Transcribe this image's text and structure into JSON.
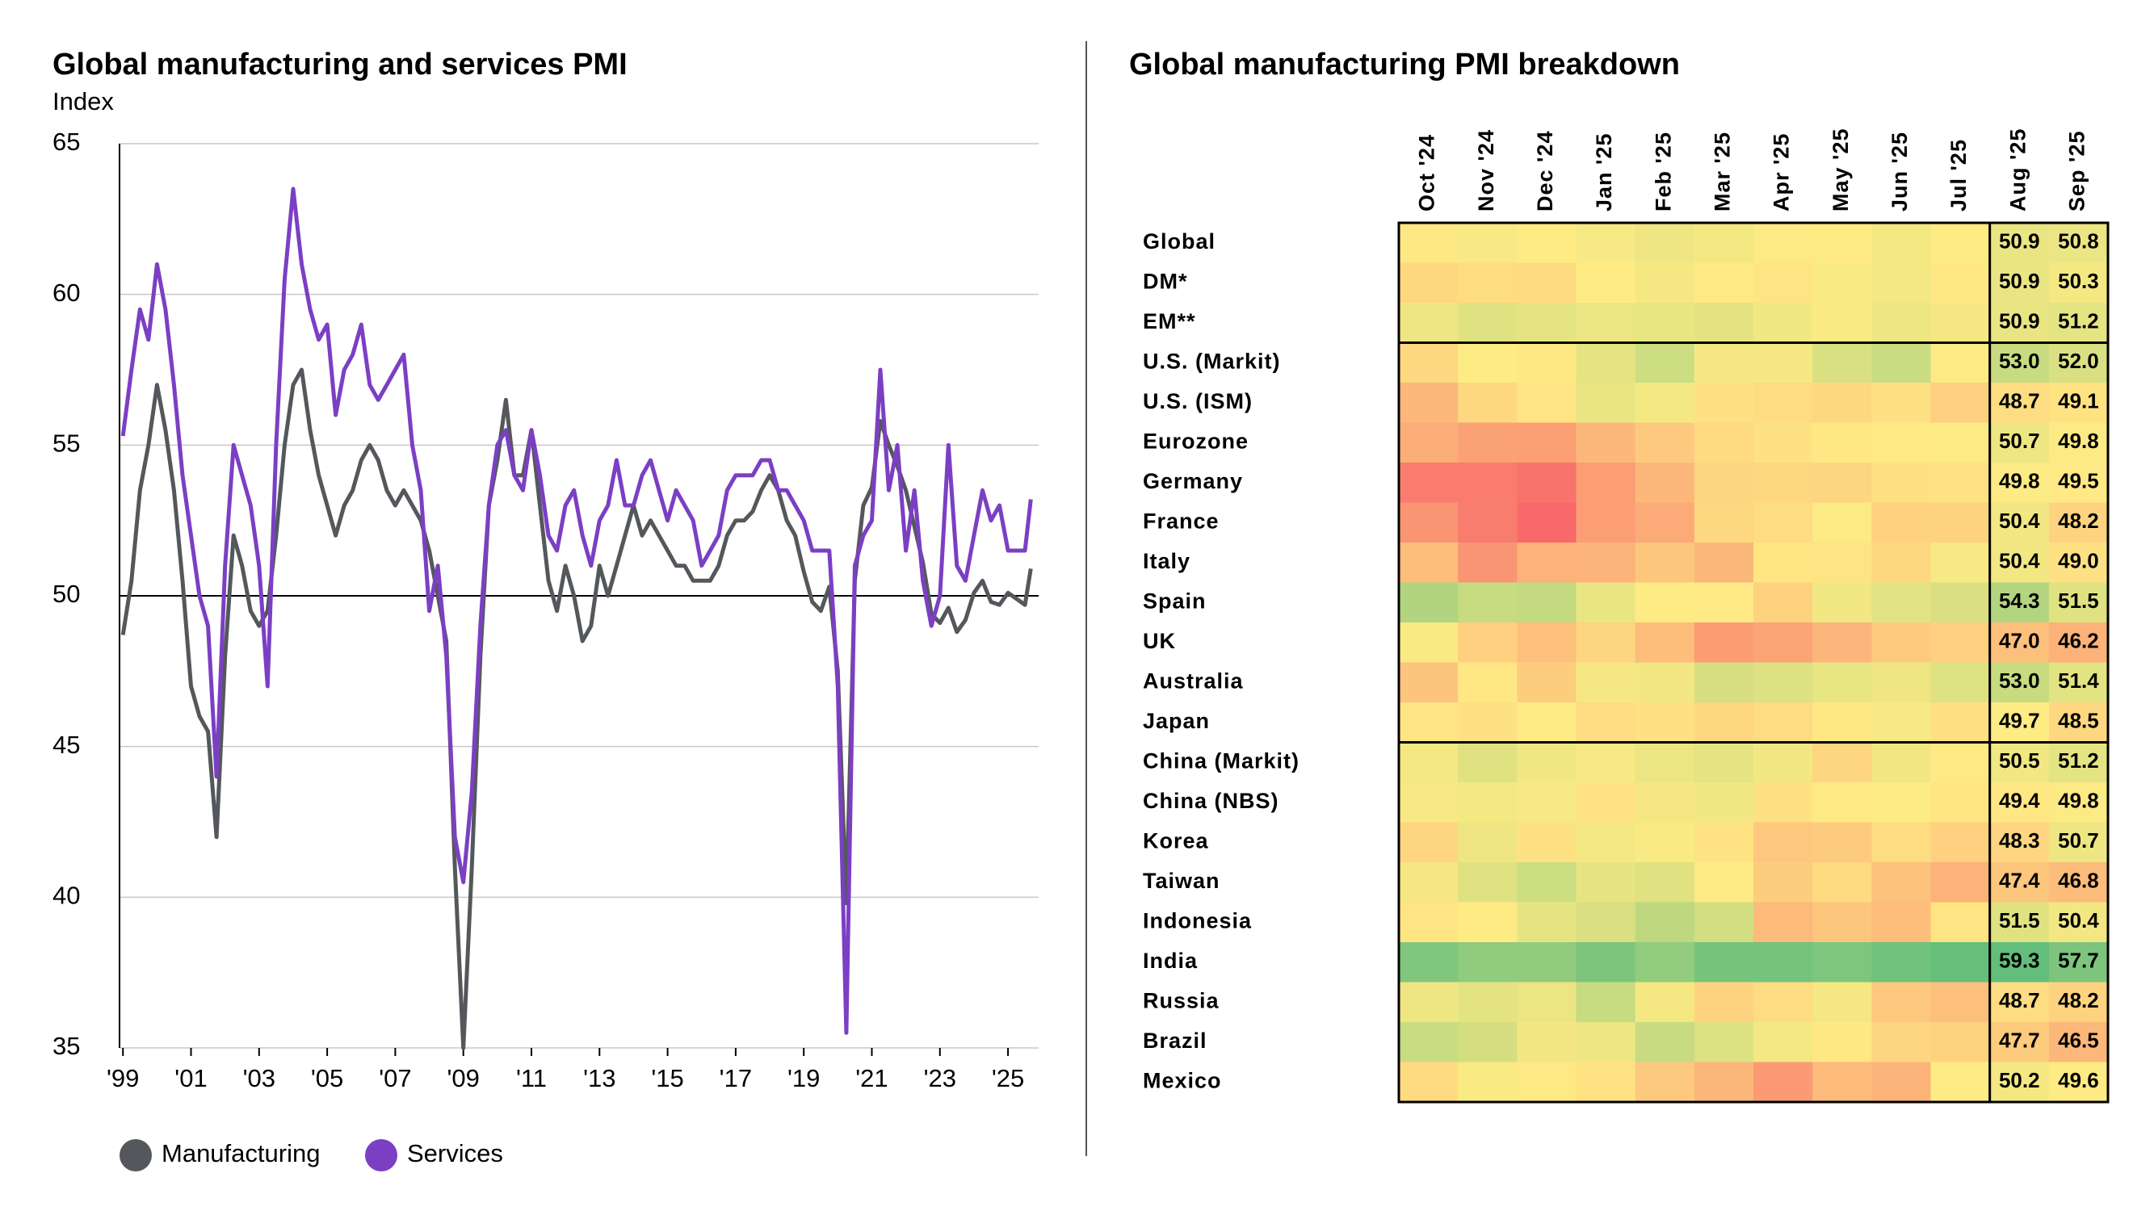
{
  "chart_data": [
    {
      "type": "line",
      "title": "Global manufacturing and services PMI",
      "y_label": "Index",
      "x": [
        1999,
        1999.25,
        1999.5,
        1999.75,
        2000,
        2000.25,
        2000.5,
        2000.75,
        2001,
        2001.25,
        2001.5,
        2001.75,
        2002,
        2002.25,
        2002.5,
        2002.75,
        2003,
        2003.25,
        2003.5,
        2003.75,
        2004,
        2004.25,
        2004.5,
        2004.75,
        2005,
        2005.25,
        2005.5,
        2005.75,
        2006,
        2006.25,
        2006.5,
        2006.75,
        2007,
        2007.25,
        2007.5,
        2007.75,
        2008,
        2008.25,
        2008.5,
        2008.75,
        2009,
        2009.25,
        2009.5,
        2009.75,
        2010,
        2010.25,
        2010.5,
        2010.75,
        2011,
        2011.25,
        2011.5,
        2011.75,
        2012,
        2012.25,
        2012.5,
        2012.75,
        2013,
        2013.25,
        2013.5,
        2013.75,
        2014,
        2014.25,
        2014.5,
        2014.75,
        2015,
        2015.25,
        2015.5,
        2015.75,
        2016,
        2016.25,
        2016.5,
        2016.75,
        2017,
        2017.25,
        2017.5,
        2017.75,
        2018,
        2018.25,
        2018.5,
        2018.75,
        2019,
        2019.25,
        2019.5,
        2019.75,
        2020,
        2020.25,
        2020.5,
        2020.75,
        2021,
        2021.25,
        2021.5,
        2021.75,
        2022,
        2022.25,
        2022.5,
        2022.75,
        2023,
        2023.25,
        2023.5,
        2023.75,
        2024,
        2024.25,
        2024.5,
        2024.75,
        2025,
        2025.25,
        2025.5,
        2025.67
      ],
      "series": [
        {
          "name": "Manufacturing",
          "color": "#54585c",
          "values": [
            48.7,
            50.5,
            53.5,
            55,
            57,
            55.5,
            53.5,
            50.5,
            47,
            46,
            45.5,
            42,
            48,
            52,
            51,
            49.5,
            49,
            49.5,
            52,
            55,
            57,
            57.5,
            55.5,
            54,
            53,
            52,
            53,
            53.5,
            54.5,
            55,
            54.5,
            53.5,
            53,
            53.5,
            53,
            52.5,
            51.5,
            50,
            48.5,
            41,
            35,
            41,
            48,
            53,
            54.5,
            56.5,
            54,
            54,
            55.5,
            53,
            50.5,
            49.5,
            51,
            50,
            48.5,
            49,
            51,
            50,
            51,
            52,
            53,
            52,
            52.5,
            52,
            51.5,
            51,
            51,
            50.5,
            50.5,
            50.5,
            51,
            52,
            52.5,
            52.5,
            52.8,
            53.5,
            54,
            53.5,
            52.5,
            52,
            50.8,
            49.8,
            49.5,
            50.3,
            47.5,
            39.8,
            50.5,
            53,
            53.6,
            55.8,
            55,
            54.3,
            53.5,
            52.3,
            51.1,
            49.4,
            49.1,
            49.6,
            48.8,
            49.2,
            50.1,
            50.5,
            49.8,
            49.7,
            50.1,
            49.9,
            49.7,
            50.9
          ]
        },
        {
          "name": "Services",
          "color": "#7b3fc4",
          "values": [
            55.3,
            57.5,
            59.5,
            58.5,
            61,
            59.5,
            57,
            54,
            52,
            50,
            49,
            44,
            51,
            55,
            54,
            53,
            51,
            47,
            55,
            60.5,
            63.5,
            61,
            59.5,
            58.5,
            59,
            56,
            57.5,
            58,
            59,
            57,
            56.5,
            57,
            57.5,
            58,
            55,
            53.5,
            49.5,
            51,
            48,
            42,
            40.5,
            43.5,
            49,
            53,
            55,
            55.5,
            54,
            53.5,
            55.5,
            54,
            52,
            51.5,
            53,
            53.5,
            52,
            51,
            52.5,
            53,
            54.5,
            53,
            53,
            54,
            54.5,
            53.5,
            52.5,
            53.5,
            53,
            52.5,
            51,
            51.5,
            52,
            53.5,
            54,
            54,
            54,
            54.5,
            54.5,
            53.5,
            53.5,
            53,
            52.5,
            51.5,
            51.5,
            51.5,
            47,
            35.5,
            51,
            52,
            52.5,
            57.5,
            53.5,
            55,
            51.5,
            53.5,
            50.5,
            49,
            50,
            55,
            51,
            50.5,
            52,
            53.5,
            52.5,
            53,
            51.5,
            51.5,
            51.5,
            53.2
          ]
        }
      ],
      "xlim": [
        1998.9,
        2025.9
      ],
      "ylim": [
        35,
        65
      ],
      "xticks": [
        {
          "value": 1999,
          "label": "'99"
        },
        {
          "value": 2001,
          "label": "'01"
        },
        {
          "value": 2003,
          "label": "'03"
        },
        {
          "value": 2005,
          "label": "'05"
        },
        {
          "value": 2007,
          "label": "'07"
        },
        {
          "value": 2009,
          "label": "'09"
        },
        {
          "value": 2011,
          "label": "'11"
        },
        {
          "value": 2013,
          "label": "'13"
        },
        {
          "value": 2015,
          "label": "'15"
        },
        {
          "value": 2017,
          "label": "'17"
        },
        {
          "value": 2019,
          "label": "'19"
        },
        {
          "value": 2021,
          "label": "'21"
        },
        {
          "value": 2023,
          "label": "'23"
        },
        {
          "value": 2025,
          "label": "'25"
        }
      ],
      "yticks": [
        35,
        40,
        45,
        50,
        55,
        60,
        65
      ],
      "reference_line": 50,
      "grid": true,
      "legend": "bottom-left"
    },
    {
      "type": "heatmap",
      "title": "Global manufacturing PMI breakdown",
      "columns": [
        "Oct '24",
        "Nov '24",
        "Dec '24",
        "Jan '25",
        "Feb '25",
        "Mar '25",
        "Apr '25",
        "May '25",
        "Jun '25",
        "Jul '25",
        "Aug '25",
        "Sep '25"
      ],
      "colors": [
        "#f8696b",
        "#ffeb84",
        "#63be7b"
      ],
      "rows": [
        {
          "name": "Global",
          "values": [
            49.4,
            50.0,
            49.6,
            50.1,
            50.6,
            50.3,
            49.8,
            49.6,
            50.3,
            49.7,
            50.9,
            50.8
          ],
          "value_labels": [
            null,
            null,
            null,
            null,
            null,
            null,
            null,
            null,
            null,
            null,
            "50.9",
            "50.8"
          ]
        },
        {
          "name": "DM*",
          "values": [
            48.5,
            48.8,
            48.6,
            49.6,
            50.2,
            49.5,
            49.2,
            49.9,
            50.3,
            49.4,
            50.9,
            50.3
          ],
          "value_labels": [
            null,
            null,
            null,
            null,
            null,
            null,
            null,
            null,
            null,
            null,
            "50.9",
            "50.3"
          ]
        },
        {
          "name": "EM**",
          "values": [
            50.6,
            51.5,
            51.2,
            50.8,
            51.0,
            51.3,
            50.5,
            49.9,
            50.7,
            50.2,
            50.9,
            51.2
          ],
          "value_labels": [
            null,
            null,
            null,
            null,
            null,
            null,
            null,
            null,
            null,
            null,
            "50.9",
            "51.2"
          ]
        },
        {
          "name": "U.S. (Markit)",
          "values": [
            48.5,
            49.7,
            49.4,
            51.2,
            52.7,
            50.2,
            50.2,
            52.0,
            52.9,
            49.8,
            53.0,
            52.0
          ],
          "value_labels": [
            null,
            null,
            null,
            null,
            null,
            null,
            null,
            null,
            null,
            null,
            "53.0",
            "52.0"
          ]
        },
        {
          "name": "U.S. (ISM)",
          "values": [
            46.5,
            48.4,
            49.2,
            50.9,
            50.3,
            49.0,
            48.7,
            48.5,
            49.0,
            48.0,
            48.7,
            49.1
          ],
          "value_labels": [
            null,
            null,
            null,
            null,
            null,
            null,
            null,
            null,
            null,
            null,
            "48.7",
            "49.1"
          ]
        },
        {
          "name": "Eurozone",
          "values": [
            46.0,
            45.2,
            45.1,
            46.6,
            47.6,
            48.6,
            49.0,
            49.4,
            49.5,
            49.8,
            50.7,
            49.8
          ],
          "value_labels": [
            null,
            null,
            null,
            null,
            null,
            null,
            null,
            null,
            null,
            null,
            "50.7",
            "49.8"
          ]
        },
        {
          "name": "Germany",
          "values": [
            43.0,
            43.0,
            42.5,
            45.0,
            46.5,
            48.3,
            48.4,
            48.3,
            49.0,
            49.1,
            49.8,
            49.5
          ],
          "value_labels": [
            null,
            null,
            null,
            null,
            null,
            null,
            null,
            null,
            null,
            null,
            "49.8",
            "49.5"
          ]
        },
        {
          "name": "France",
          "values": [
            44.5,
            43.1,
            41.9,
            45.0,
            45.8,
            48.5,
            48.7,
            49.8,
            48.1,
            48.2,
            50.4,
            48.2
          ],
          "value_labels": [
            null,
            null,
            null,
            null,
            null,
            null,
            null,
            null,
            null,
            null,
            "50.4",
            "48.2"
          ]
        },
        {
          "name": "Italy",
          "values": [
            46.9,
            44.5,
            46.2,
            46.3,
            47.4,
            46.6,
            49.3,
            49.2,
            48.4,
            50.1,
            50.4,
            49.0
          ],
          "value_labels": [
            null,
            null,
            null,
            null,
            null,
            null,
            null,
            null,
            null,
            null,
            "50.4",
            "49.0"
          ]
        },
        {
          "name": "Spain",
          "values": [
            54.5,
            53.1,
            53.3,
            50.9,
            49.7,
            49.5,
            48.1,
            50.5,
            51.4,
            51.9,
            54.3,
            51.5
          ],
          "value_labels": [
            null,
            null,
            null,
            null,
            null,
            null,
            null,
            null,
            null,
            null,
            "54.3",
            "51.5"
          ]
        },
        {
          "name": "UK",
          "values": [
            49.9,
            48.0,
            47.0,
            48.3,
            46.9,
            44.9,
            45.4,
            46.4,
            47.7,
            48.0,
            47.0,
            46.2
          ],
          "value_labels": [
            null,
            null,
            null,
            null,
            null,
            null,
            null,
            null,
            null,
            null,
            "47.0",
            "46.2"
          ]
        },
        {
          "name": "Australia",
          "values": [
            47.3,
            49.4,
            47.8,
            50.2,
            50.4,
            52.1,
            51.7,
            51.0,
            50.6,
            51.6,
            53.0,
            51.4
          ],
          "value_labels": [
            null,
            null,
            null,
            null,
            null,
            null,
            null,
            null,
            null,
            null,
            "53.0",
            "51.4"
          ]
        },
        {
          "name": "Japan",
          "values": [
            49.2,
            49.0,
            49.6,
            48.7,
            49.0,
            48.4,
            48.7,
            49.4,
            50.1,
            48.9,
            49.7,
            48.5
          ],
          "value_labels": [
            null,
            null,
            null,
            null,
            null,
            null,
            null,
            null,
            null,
            null,
            "49.7",
            "48.5"
          ]
        },
        {
          "name": "China (Markit)",
          "values": [
            50.3,
            51.5,
            50.5,
            50.1,
            50.8,
            51.2,
            50.4,
            48.3,
            50.4,
            49.5,
            50.5,
            51.2
          ],
          "value_labels": [
            null,
            null,
            null,
            null,
            null,
            null,
            null,
            null,
            null,
            null,
            "50.5",
            "51.2"
          ]
        },
        {
          "name": "China (NBS)",
          "values": [
            50.1,
            50.3,
            50.1,
            49.1,
            50.2,
            50.5,
            49.0,
            49.5,
            49.7,
            49.3,
            49.4,
            49.8
          ],
          "value_labels": [
            null,
            null,
            null,
            null,
            null,
            null,
            null,
            null,
            null,
            null,
            "49.4",
            "49.8"
          ]
        },
        {
          "name": "Korea",
          "values": [
            48.3,
            50.6,
            49.0,
            50.3,
            49.9,
            49.1,
            47.5,
            47.7,
            48.7,
            48.0,
            48.3,
            50.7
          ],
          "value_labels": [
            null,
            null,
            null,
            null,
            null,
            null,
            null,
            null,
            null,
            null,
            "48.3",
            "50.7"
          ]
        },
        {
          "name": "Taiwan",
          "values": [
            50.2,
            51.5,
            52.7,
            51.1,
            51.5,
            49.8,
            47.8,
            48.6,
            47.2,
            46.2,
            47.4,
            46.8
          ],
          "value_labels": [
            null,
            null,
            null,
            null,
            null,
            null,
            null,
            null,
            null,
            null,
            "47.4",
            "46.8"
          ]
        },
        {
          "name": "Indonesia",
          "values": [
            49.2,
            49.6,
            51.2,
            51.9,
            53.6,
            52.4,
            46.7,
            47.4,
            46.9,
            49.2,
            51.5,
            50.4
          ],
          "value_labels": [
            null,
            null,
            null,
            null,
            null,
            null,
            null,
            null,
            null,
            null,
            "51.5",
            "50.4"
          ]
        },
        {
          "name": "India",
          "values": [
            57.5,
            56.5,
            56.4,
            57.7,
            56.3,
            58.1,
            58.2,
            57.6,
            58.4,
            59.1,
            59.3,
            57.7
          ],
          "value_labels": [
            null,
            null,
            null,
            null,
            null,
            null,
            null,
            null,
            null,
            null,
            "59.3",
            "57.7"
          ]
        },
        {
          "name": "Russia",
          "values": [
            50.6,
            51.3,
            50.8,
            53.1,
            50.2,
            48.2,
            48.7,
            50.2,
            47.5,
            47.0,
            48.7,
            48.2
          ],
          "value_labels": [
            null,
            null,
            null,
            null,
            null,
            null,
            null,
            null,
            null,
            null,
            "48.7",
            "48.2"
          ]
        },
        {
          "name": "Brazil",
          "values": [
            52.9,
            52.3,
            50.4,
            50.7,
            53.0,
            51.8,
            50.3,
            49.4,
            48.3,
            48.2,
            47.7,
            46.5
          ],
          "value_labels": [
            null,
            null,
            null,
            null,
            null,
            null,
            null,
            null,
            null,
            null,
            "47.7",
            "46.5"
          ]
        },
        {
          "name": "Mexico",
          "values": [
            48.6,
            49.9,
            49.5,
            49.1,
            47.6,
            46.5,
            44.8,
            46.7,
            46.3,
            49.6,
            50.2,
            49.6
          ],
          "value_labels": [
            null,
            null,
            null,
            null,
            null,
            null,
            null,
            null,
            null,
            null,
            "50.2",
            "49.6"
          ]
        }
      ]
    }
  ]
}
